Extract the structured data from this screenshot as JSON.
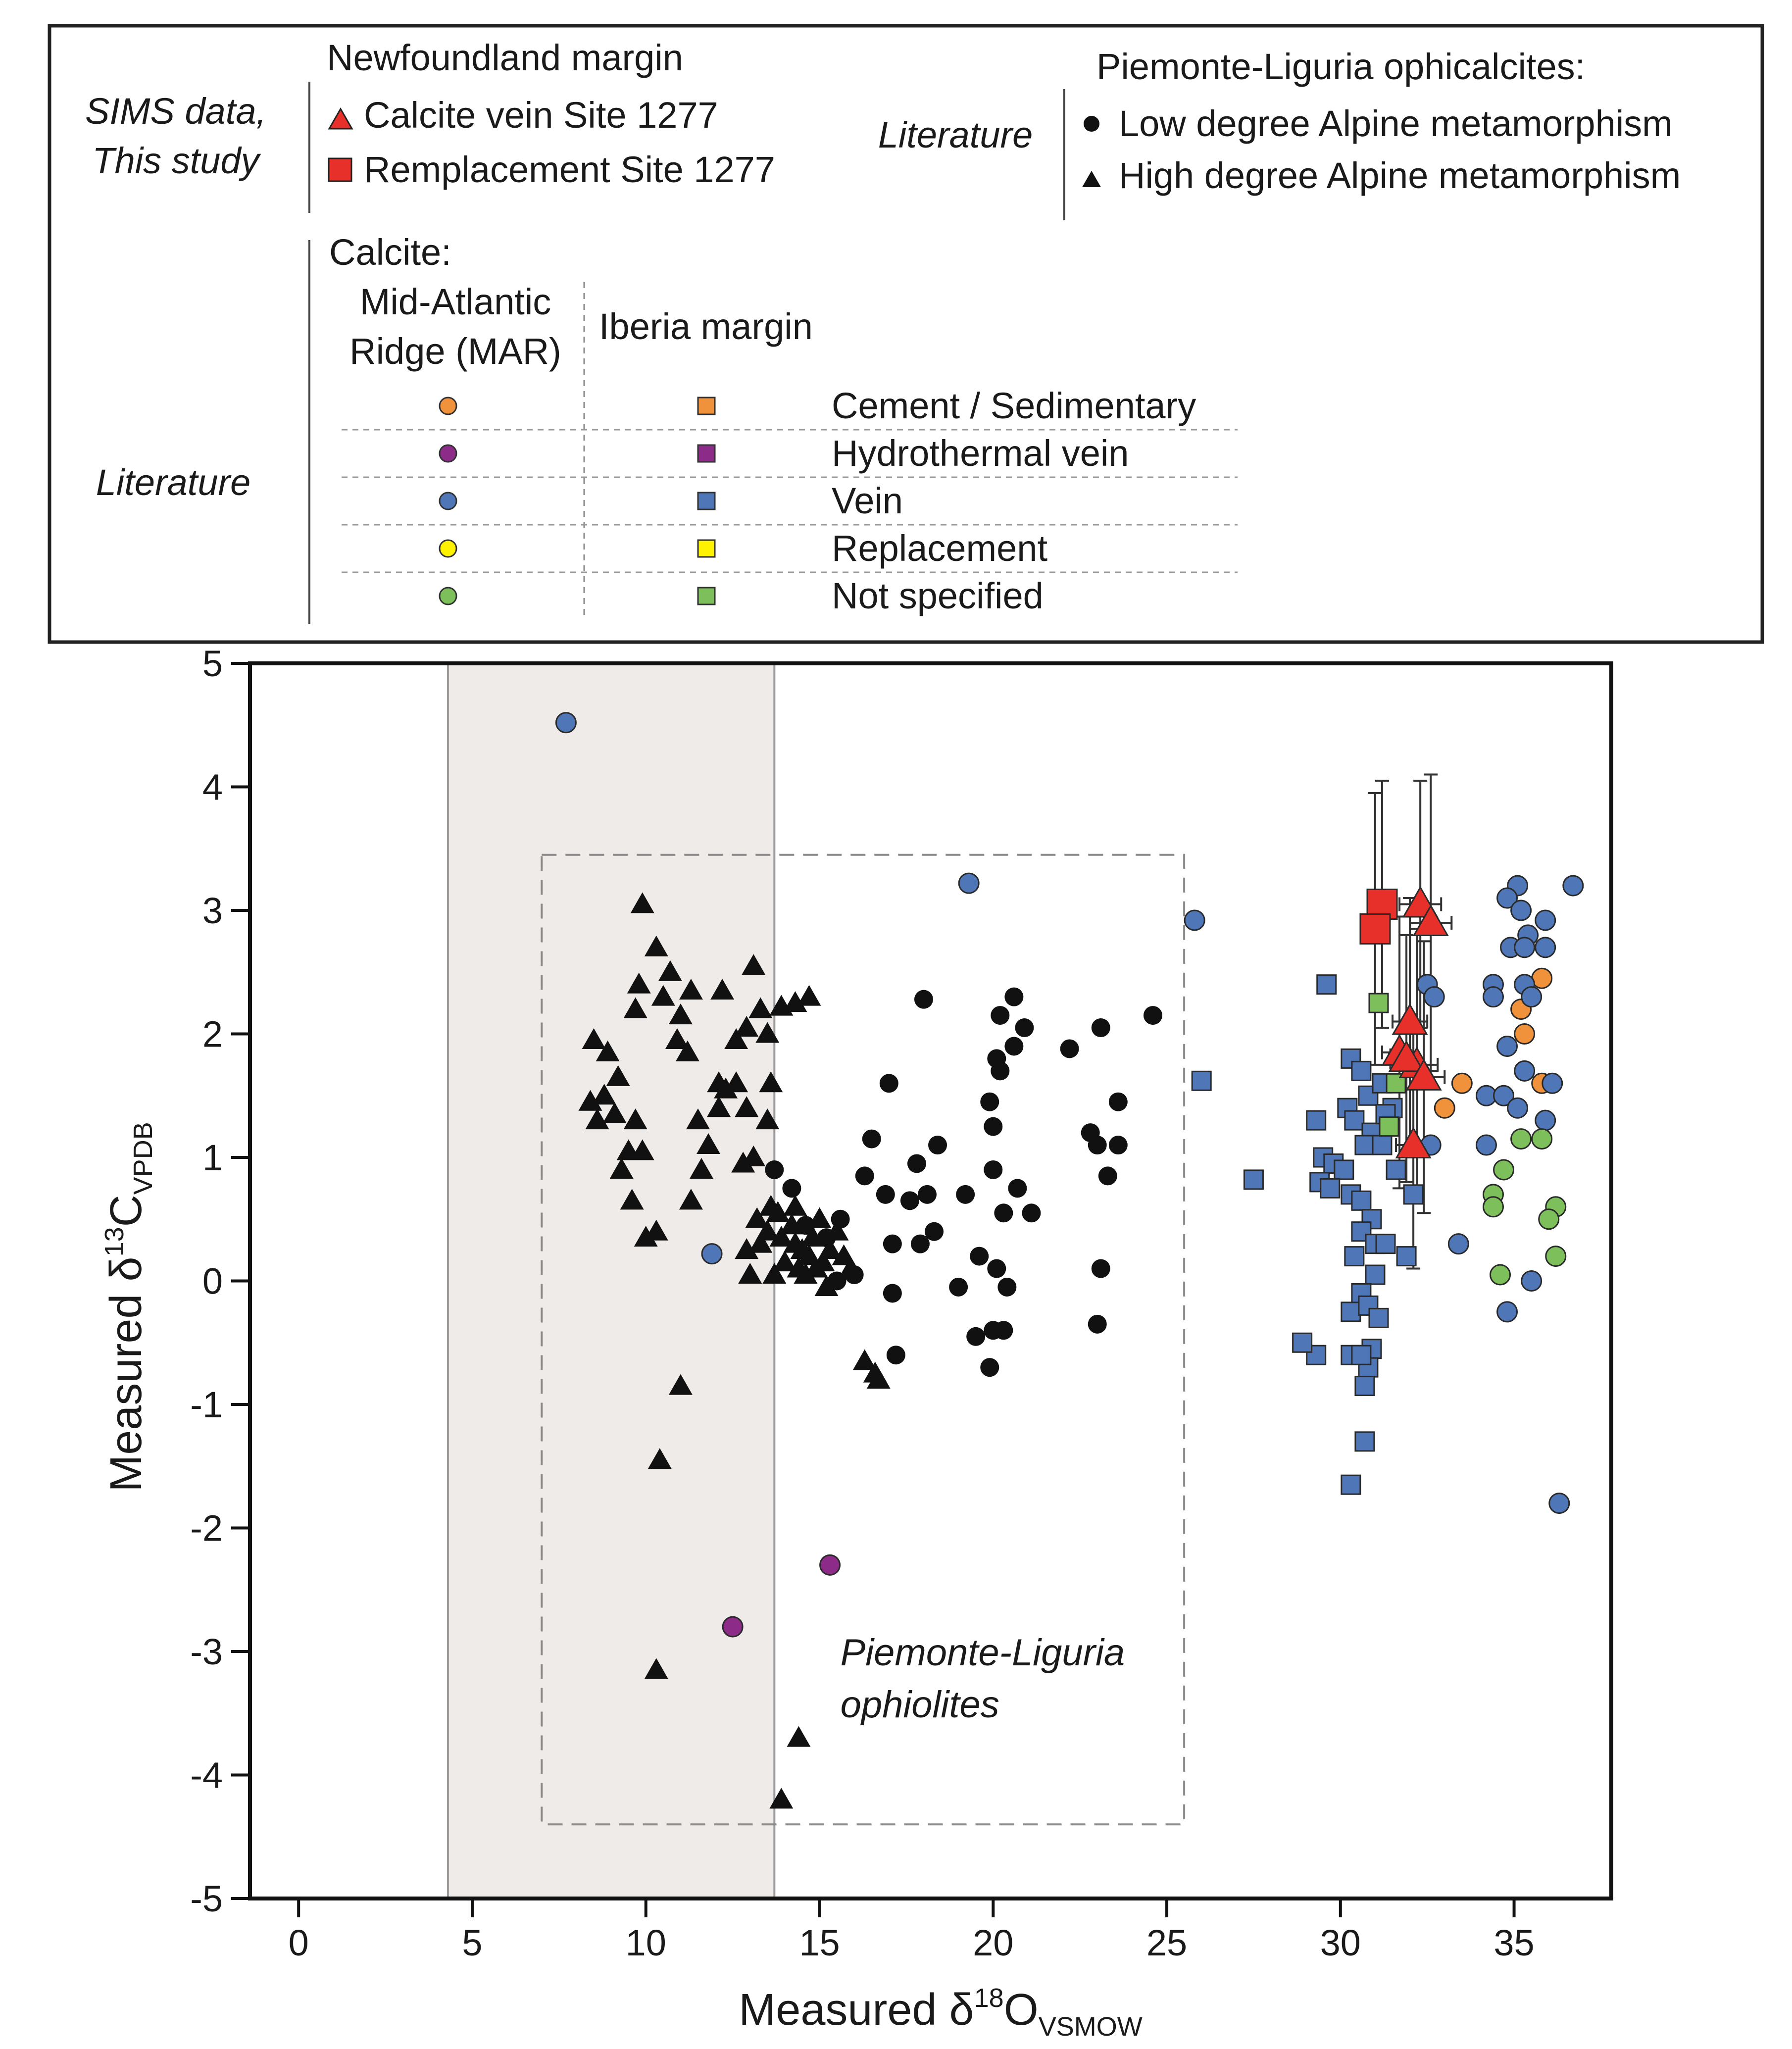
{
  "legend": {
    "sims_label_1": "SIMS data,",
    "sims_label_2": "This study",
    "nf_header": "Newfoundland margin",
    "nf_item_1": "Calcite vein Site 1277",
    "nf_item_2": "Remplacement Site 1277",
    "lit_label_1": "Literature",
    "pl_header": "Piemonte-Liguria ophicalcites:",
    "pl_item_1": "Low degree Alpine metamorphism",
    "pl_item_2": "High degree Alpine metamorphism",
    "calcite_header": "Calcite:",
    "mar_header_1": "Mid-Atlantic",
    "mar_header_2": "Ridge (MAR)",
    "iberia_header": "Iberia margin",
    "lit_label_2": "Literature",
    "categories": [
      {
        "label": "Cement / Sedimentary",
        "color": "#f0923c"
      },
      {
        "label": "Hydrothermal vein",
        "color": "#8c2c88"
      },
      {
        "label": "Vein",
        "color": "#4f77b8"
      },
      {
        "label": "Replacement",
        "color": "#fff200"
      },
      {
        "label": "Not specified",
        "color": "#7dbf5a"
      }
    ]
  },
  "colors": {
    "sims_red": "#e8302a",
    "shade": "#efebe9",
    "black": "#111111"
  },
  "chart_data": {
    "type": "scatter",
    "xlabel": "Measured δ",
    "xlabel_sup": "18",
    "xlabel_main": "O",
    "xlabel_sub": "VSMOW",
    "ylabel": "Measured δ",
    "ylabel_sup": "13",
    "ylabel_main": "C",
    "ylabel_sub": "VPDB",
    "xlim": [
      -1.4,
      37.8
    ],
    "ylim": [
      -5,
      5
    ],
    "xticks": [
      0,
      5,
      10,
      15,
      20,
      25,
      30,
      35
    ],
    "yticks": [
      5,
      4,
      3,
      2,
      1,
      0,
      -1,
      -2,
      -3,
      -4,
      -5
    ],
    "shaded_band_x": [
      4.3,
      13.7
    ],
    "region_box": {
      "x": [
        7,
        25.5
      ],
      "y": [
        -4.4,
        3.45
      ],
      "label_1": "Piemonte-Liguria",
      "label_2": "ophiolites"
    },
    "series": [
      {
        "name": "Calcite vein Site 1277",
        "marker": "triangle",
        "color": "#e8302a",
        "points": [
          [
            32.3,
            3.05,
            0.6,
            1.0
          ],
          [
            32.6,
            2.9,
            0.6,
            1.2
          ],
          [
            32.0,
            2.1,
            0.5,
            1.0
          ],
          [
            31.7,
            1.85,
            0.5,
            1.1
          ],
          [
            32.2,
            1.75,
            0.6,
            1.1
          ],
          [
            31.9,
            1.8,
            0.5,
            1.0
          ],
          [
            32.4,
            1.65,
            0.6,
            1.1
          ],
          [
            32.1,
            1.1,
            0.5,
            1.0
          ]
        ]
      },
      {
        "name": "Remplacement Site 1277",
        "marker": "square",
        "color": "#e8302a",
        "points": [
          [
            31.2,
            3.05,
            0.4,
            1.0
          ],
          [
            31.0,
            2.85,
            0.4,
            1.1
          ]
        ]
      },
      {
        "name": "Low degree Alpine metamorphism",
        "marker": "circle",
        "color": "#111111",
        "points": [
          [
            13.7,
            0.9
          ],
          [
            14.2,
            0.75
          ],
          [
            14.6,
            0.45
          ],
          [
            15.2,
            0.35
          ],
          [
            15.6,
            0.5
          ],
          [
            16.3,
            0.85
          ],
          [
            16.5,
            1.15
          ],
          [
            16.9,
            0.7
          ],
          [
            17.0,
            1.6
          ],
          [
            17.1,
            0.3
          ],
          [
            17.1,
            -0.1
          ],
          [
            17.2,
            -0.6
          ],
          [
            17.6,
            0.65
          ],
          [
            17.8,
            0.95
          ],
          [
            17.9,
            0.3
          ],
          [
            18.1,
            0.7
          ],
          [
            18.0,
            2.28
          ],
          [
            18.4,
            1.1
          ],
          [
            18.3,
            0.4
          ],
          [
            19.0,
            -0.05
          ],
          [
            19.2,
            0.7
          ],
          [
            19.5,
            -0.45
          ],
          [
            19.6,
            0.2
          ],
          [
            19.9,
            -0.7
          ],
          [
            20.1,
            0.1
          ],
          [
            20.0,
            -0.4
          ],
          [
            19.9,
            1.45
          ],
          [
            20.0,
            1.25
          ],
          [
            20.0,
            0.9
          ],
          [
            20.1,
            1.8
          ],
          [
            20.2,
            2.15
          ],
          [
            20.3,
            0.55
          ],
          [
            20.2,
            1.7
          ],
          [
            20.3,
            -0.4
          ],
          [
            20.6,
            2.3
          ],
          [
            20.6,
            1.9
          ],
          [
            20.7,
            0.75
          ],
          [
            20.9,
            2.05
          ],
          [
            21.1,
            0.55
          ],
          [
            22.2,
            1.88
          ],
          [
            22.8,
            1.2
          ],
          [
            23.1,
            0.1
          ],
          [
            23.0,
            1.1
          ],
          [
            23.3,
            0.85
          ],
          [
            23.1,
            2.05
          ],
          [
            23.6,
            1.1
          ],
          [
            23.6,
            1.45
          ],
          [
            24.6,
            2.15
          ],
          [
            23.0,
            -0.35
          ],
          [
            20.4,
            -0.05
          ],
          [
            16.0,
            0.05
          ],
          [
            15.5,
            0.0
          ]
        ]
      },
      {
        "name": "High degree Alpine metamorphism",
        "marker": "triangle",
        "color": "#111111",
        "points": [
          [
            9.9,
            3.05
          ],
          [
            10.3,
            2.7
          ],
          [
            10.7,
            2.5
          ],
          [
            9.8,
            2.4
          ],
          [
            9.7,
            2.2
          ],
          [
            10.5,
            2.3
          ],
          [
            11.0,
            2.15
          ],
          [
            11.3,
            2.35
          ],
          [
            10.9,
            1.95
          ],
          [
            11.2,
            1.85
          ],
          [
            8.5,
            1.95
          ],
          [
            8.9,
            1.85
          ],
          [
            9.2,
            1.65
          ],
          [
            8.8,
            1.5
          ],
          [
            8.6,
            1.3
          ],
          [
            8.4,
            1.45
          ],
          [
            9.1,
            1.35
          ],
          [
            9.7,
            1.3
          ],
          [
            9.5,
            1.05
          ],
          [
            9.9,
            1.05
          ],
          [
            9.3,
            0.9
          ],
          [
            9.6,
            0.65
          ],
          [
            10.0,
            0.35
          ],
          [
            10.3,
            0.4
          ],
          [
            11.3,
            0.65
          ],
          [
            11.6,
            0.9
          ],
          [
            11.8,
            1.1
          ],
          [
            11.5,
            1.3
          ],
          [
            12.1,
            1.4
          ],
          [
            12.3,
            1.55
          ],
          [
            12.6,
            1.6
          ],
          [
            12.9,
            1.4
          ],
          [
            12.1,
            1.6
          ],
          [
            12.2,
            2.35
          ],
          [
            12.6,
            1.95
          ],
          [
            12.9,
            2.05
          ],
          [
            13.1,
            2.55
          ],
          [
            13.3,
            2.2
          ],
          [
            13.5,
            2.0
          ],
          [
            13.6,
            1.6
          ],
          [
            13.5,
            1.3
          ],
          [
            13.9,
            2.22
          ],
          [
            14.3,
            2.25
          ],
          [
            14.7,
            2.3
          ],
          [
            12.8,
            0.95
          ],
          [
            13.1,
            1.0
          ],
          [
            13.2,
            0.5
          ],
          [
            13.3,
            0.3
          ],
          [
            13.5,
            0.4
          ],
          [
            13.6,
            0.6
          ],
          [
            13.8,
            0.55
          ],
          [
            13.9,
            0.35
          ],
          [
            14.0,
            0.15
          ],
          [
            14.2,
            0.45
          ],
          [
            14.3,
            0.6
          ],
          [
            14.3,
            0.3
          ],
          [
            14.4,
            0.1
          ],
          [
            14.5,
            0.25
          ],
          [
            14.6,
            0.45
          ],
          [
            14.6,
            0.05
          ],
          [
            14.7,
            0.2
          ],
          [
            14.8,
            0.35
          ],
          [
            14.9,
            0.1
          ],
          [
            15.0,
            0.5
          ],
          [
            15.1,
            0.15
          ],
          [
            15.2,
            -0.05
          ],
          [
            15.3,
            0.25
          ],
          [
            15.5,
            0.4
          ],
          [
            15.7,
            0.2
          ],
          [
            15.9,
            0.1
          ],
          [
            13.0,
            0.05
          ],
          [
            12.9,
            0.25
          ],
          [
            13.7,
            0.05
          ],
          [
            16.3,
            -0.65
          ],
          [
            16.6,
            -0.75
          ],
          [
            16.7,
            -0.8
          ],
          [
            11.0,
            -0.85
          ],
          [
            10.4,
            -1.45
          ],
          [
            10.3,
            -3.15
          ],
          [
            14.4,
            -3.7
          ],
          [
            13.9,
            -4.2
          ]
        ]
      },
      {
        "name": "MAR Cement / Sedimentary",
        "marker": "circle",
        "color": "#f0923c",
        "points": [
          [
            35.8,
            2.45
          ],
          [
            35.2,
            2.2
          ],
          [
            35.3,
            2.0
          ],
          [
            33.5,
            1.6
          ],
          [
            35.8,
            1.6
          ],
          [
            33.0,
            1.4
          ]
        ]
      },
      {
        "name": "MAR Hydrothermal vein",
        "marker": "circle",
        "color": "#8c2c88",
        "points": [
          [
            15.3,
            -2.3
          ],
          [
            12.5,
            -2.8
          ]
        ]
      },
      {
        "name": "MAR Vein",
        "marker": "circle",
        "color": "#4f77b8",
        "points": [
          [
            7.7,
            4.52
          ],
          [
            19.3,
            3.22
          ],
          [
            25.8,
            2.92
          ],
          [
            11.9,
            0.22
          ],
          [
            35.1,
            3.2
          ],
          [
            36.7,
            3.2
          ],
          [
            34.8,
            3.1
          ],
          [
            35.2,
            3.0
          ],
          [
            35.9,
            2.92
          ],
          [
            35.4,
            2.8
          ],
          [
            34.9,
            2.7
          ],
          [
            35.3,
            2.7
          ],
          [
            35.9,
            2.7
          ],
          [
            34.4,
            2.4
          ],
          [
            35.3,
            2.4
          ],
          [
            34.4,
            2.3
          ],
          [
            35.5,
            2.3
          ],
          [
            32.5,
            2.4
          ],
          [
            32.7,
            2.3
          ],
          [
            34.8,
            1.9
          ],
          [
            35.3,
            1.7
          ],
          [
            36.1,
            1.6
          ],
          [
            34.2,
            1.5
          ],
          [
            34.7,
            1.5
          ],
          [
            35.1,
            1.4
          ],
          [
            35.9,
            1.3
          ],
          [
            32.6,
            1.1
          ],
          [
            34.2,
            1.1
          ],
          [
            33.4,
            0.3
          ],
          [
            35.5,
            0.0
          ],
          [
            34.8,
            -0.25
          ],
          [
            36.3,
            -1.8
          ]
        ]
      },
      {
        "name": "MAR Not specified",
        "marker": "circle",
        "color": "#7dbf5a",
        "points": [
          [
            35.2,
            1.15
          ],
          [
            35.8,
            1.15
          ],
          [
            34.7,
            0.9
          ],
          [
            34.4,
            0.7
          ],
          [
            34.4,
            0.6
          ],
          [
            36.2,
            0.6
          ],
          [
            36.0,
            0.5
          ],
          [
            36.2,
            0.2
          ],
          [
            34.6,
            0.05
          ]
        ]
      },
      {
        "name": "Iberia Vein",
        "marker": "square",
        "color": "#4f77b8",
        "points": [
          [
            26.0,
            1.62
          ],
          [
            27.5,
            0.82
          ],
          [
            29.6,
            2.4
          ],
          [
            30.3,
            1.8
          ],
          [
            30.6,
            1.7
          ],
          [
            30.8,
            1.5
          ],
          [
            30.2,
            1.4
          ],
          [
            30.4,
            1.3
          ],
          [
            29.3,
            1.3
          ],
          [
            30.9,
            1.2
          ],
          [
            30.7,
            1.1
          ],
          [
            31.2,
            1.1
          ],
          [
            29.5,
            1.0
          ],
          [
            29.8,
            0.95
          ],
          [
            30.1,
            0.9
          ],
          [
            30.3,
            0.7
          ],
          [
            30.6,
            0.65
          ],
          [
            29.4,
            0.8
          ],
          [
            29.7,
            0.75
          ],
          [
            30.9,
            0.5
          ],
          [
            30.6,
            0.4
          ],
          [
            31.0,
            0.3
          ],
          [
            31.3,
            0.3
          ],
          [
            30.4,
            0.2
          ],
          [
            31.0,
            0.05
          ],
          [
            30.6,
            -0.1
          ],
          [
            30.3,
            -0.25
          ],
          [
            30.8,
            -0.2
          ],
          [
            31.1,
            -0.3
          ],
          [
            30.9,
            -0.55
          ],
          [
            29.3,
            -0.6
          ],
          [
            30.3,
            -0.6
          ],
          [
            30.8,
            -0.7
          ],
          [
            30.7,
            -0.85
          ],
          [
            30.6,
            -0.6
          ],
          [
            28.9,
            -0.5
          ],
          [
            30.7,
            -1.3
          ],
          [
            30.3,
            -1.65
          ],
          [
            31.6,
            0.9
          ],
          [
            32.1,
            0.7
          ],
          [
            31.9,
            0.2
          ],
          [
            31.5,
            1.4
          ],
          [
            31.7,
            1.8
          ],
          [
            31.2,
            1.6
          ],
          [
            31.3,
            1.35
          ]
        ]
      },
      {
        "name": "Iberia Not specified",
        "marker": "square",
        "color": "#7dbf5a",
        "points": [
          [
            31.1,
            2.25
          ],
          [
            31.4,
            1.25
          ],
          [
            31.6,
            1.6
          ]
        ]
      }
    ]
  }
}
